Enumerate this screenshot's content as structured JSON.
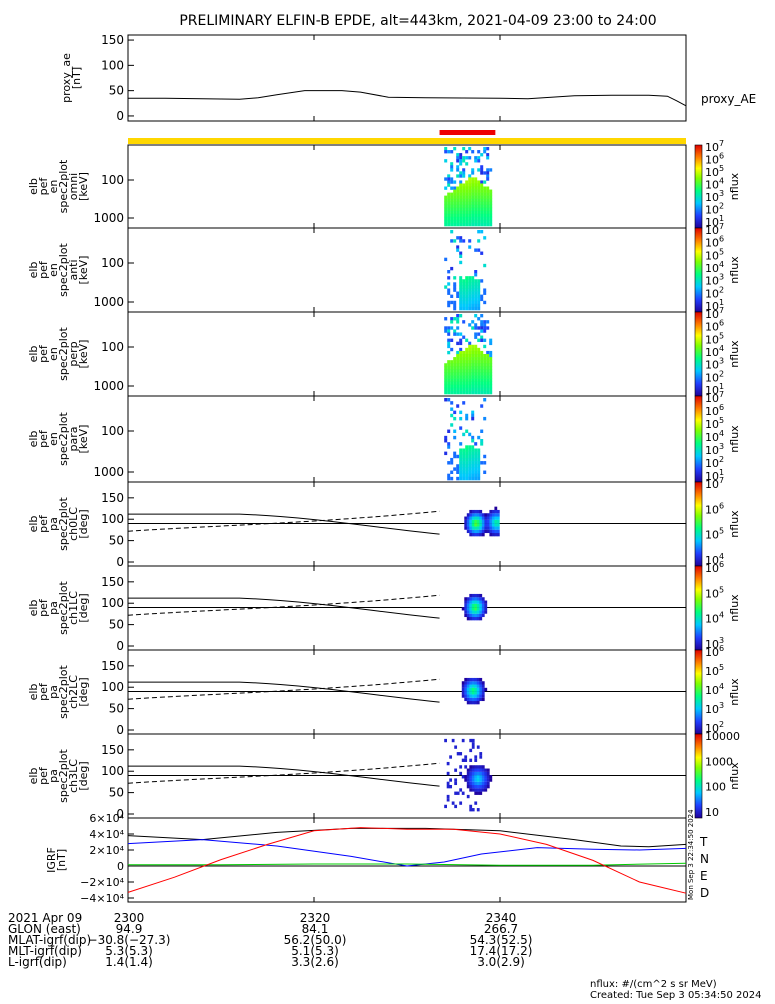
{
  "title": "PRELIMINARY ELFIN-B EPDE, alt=443km, 2021-04-09 23:00 to 24:00",
  "chart_data": [
    {
      "panel": "proxy_ae",
      "type": "line",
      "ylabel": [
        "proxy_ae",
        "[nT]"
      ],
      "legend": "proxy_AE",
      "ylim": [
        0,
        160
      ],
      "yticks": [
        "0",
        "50",
        "100",
        "150"
      ],
      "ytick_vals": [
        0,
        50,
        100,
        150
      ],
      "x_minutes": [
        0,
        4,
        8,
        12,
        14,
        16,
        19,
        23,
        25,
        28,
        32,
        40,
        43,
        48,
        52,
        56,
        58,
        59,
        60
      ],
      "values": [
        35,
        35,
        34,
        33,
        36,
        42,
        50,
        50,
        47,
        37,
        36,
        35,
        34,
        40,
        41,
        41,
        39,
        30,
        20
      ]
    },
    {
      "panel": "science_zone_bar",
      "type": "bar",
      "yellow_span_minutes": [
        0,
        60
      ],
      "red_span_minutes": [
        33.5,
        39.5
      ]
    },
    {
      "panel": "omni",
      "type": "heatmap",
      "ylabel": [
        "elb",
        "pef",
        "en",
        "spec2plot",
        "omni",
        "[keV]"
      ],
      "yscale": "log",
      "yticks": [
        "100",
        "1000"
      ],
      "zlabel": "nflux",
      "zlim": [
        10,
        10000000
      ],
      "ztick_pows": [
        1,
        2,
        3,
        4,
        5,
        6,
        7
      ],
      "ztick_base": "10",
      "active_minutes": [
        34.0,
        39.0
      ]
    },
    {
      "panel": "anti",
      "type": "heatmap",
      "ylabel": [
        "elb",
        "pef",
        "en",
        "spec2plot",
        "anti",
        "[keV]"
      ],
      "yscale": "log",
      "yticks": [
        "100",
        "1000"
      ],
      "zlabel": "nflux",
      "zlim": [
        10,
        10000000
      ],
      "ztick_pows": [
        1,
        2,
        3,
        4,
        5,
        6,
        7
      ],
      "ztick_base": "10",
      "active_minutes": [
        34.0,
        38.5
      ]
    },
    {
      "panel": "perp",
      "type": "heatmap",
      "ylabel": [
        "elb",
        "pef",
        "en",
        "spec2plot",
        "perp",
        "[keV]"
      ],
      "yscale": "log",
      "yticks": [
        "100",
        "1000"
      ],
      "zlabel": "nflux",
      "zlim": [
        10,
        10000000
      ],
      "ztick_pows": [
        1,
        2,
        3,
        4,
        5,
        6,
        7
      ],
      "ztick_base": "10",
      "active_minutes": [
        34.0,
        39.0
      ]
    },
    {
      "panel": "para",
      "type": "heatmap",
      "ylabel": [
        "elb",
        "pef",
        "en",
        "spec2plot",
        "para",
        "[keV]"
      ],
      "yscale": "log",
      "yticks": [
        "100",
        "1000"
      ],
      "zlabel": "nflux",
      "zlim": [
        10,
        10000000
      ],
      "ztick_pows": [
        1,
        2,
        3,
        4,
        5,
        6,
        7
      ],
      "ztick_base": "10",
      "active_minutes": [
        34.0,
        38.5
      ]
    },
    {
      "panel": "ch0LC",
      "type": "heatmap",
      "ylabel": [
        "elb",
        "pef",
        "pa",
        "spec2plot",
        "ch0LC",
        "[deg]"
      ],
      "yticks": [
        "0",
        "50",
        "100",
        "150"
      ],
      "ylim": [
        0,
        180
      ],
      "zlabel": "nflux",
      "zlim": [
        1000,
        10000000
      ],
      "ztick_pows": [
        4,
        5,
        6,
        7
      ],
      "ztick_base": "10"
    },
    {
      "panel": "ch1LC",
      "type": "heatmap",
      "ylabel": [
        "elb",
        "pef",
        "pa",
        "spec2plot",
        "ch1LC",
        "[deg]"
      ],
      "yticks": [
        "0",
        "50",
        "100",
        "150"
      ],
      "ylim": [
        0,
        180
      ],
      "zlabel": "nflux",
      "zlim": [
        100,
        10000000
      ],
      "ztick_pows": [
        3,
        4,
        5,
        6
      ],
      "ztick_base": "10"
    },
    {
      "panel": "ch2LC",
      "type": "heatmap",
      "ylabel": [
        "elb",
        "pef",
        "pa",
        "spec2plot",
        "ch2LC",
        "[deg]"
      ],
      "yticks": [
        "0",
        "50",
        "100",
        "150"
      ],
      "ylim": [
        0,
        180
      ],
      "zlabel": "nflux",
      "zlim": [
        100,
        1000000
      ],
      "ztick_pows": [
        2,
        3,
        4,
        5,
        6
      ],
      "ztick_base": "10"
    },
    {
      "panel": "ch3LC",
      "type": "heatmap",
      "ylabel": [
        "elb",
        "pef",
        "pa",
        "spec2plot",
        "ch3LC",
        "[deg]"
      ],
      "yticks": [
        "0",
        "50",
        "100",
        "150"
      ],
      "ylim": [
        0,
        180
      ],
      "zlabel": "nflux",
      "zlim": [
        10,
        10000
      ],
      "zticks": [
        "10",
        "100",
        "1000",
        "10000"
      ]
    },
    {
      "panel": "igrf",
      "type": "line",
      "ylabel": [
        "IGRF",
        "[nT]"
      ],
      "yticks": [
        "6×10⁴",
        "4×10⁴",
        "2×10⁴",
        "0",
        "−2×10⁴",
        "−4×10⁴"
      ],
      "ytick_vals": [
        60000,
        40000,
        20000,
        0,
        -20000,
        -40000
      ],
      "ylim": [
        -45000,
        60000
      ],
      "series": [
        {
          "name": "T",
          "color": "#000000",
          "x": [
            0,
            8,
            16,
            24,
            32,
            40,
            48,
            53,
            56,
            60
          ],
          "values": [
            38000,
            33000,
            42000,
            47000,
            47000,
            44000,
            33000,
            25000,
            24000,
            27000
          ]
        },
        {
          "name": "N",
          "color": "#0000ff",
          "x": [
            0,
            8,
            16,
            24,
            30,
            34,
            38,
            44,
            50,
            55,
            60
          ],
          "values": [
            28000,
            33000,
            25000,
            12000,
            0,
            5000,
            15000,
            23000,
            21000,
            20000,
            22000
          ]
        },
        {
          "name": "E",
          "color": "#00cc00",
          "x": [
            0,
            10,
            20,
            30,
            40,
            50,
            60
          ],
          "values": [
            1500,
            1500,
            2500,
            2500,
            1000,
            1000,
            3500
          ]
        },
        {
          "name": "D",
          "color": "#ff0000",
          "x": [
            0,
            5,
            10,
            15,
            20,
            25,
            30,
            35,
            40,
            45,
            50,
            55,
            60
          ],
          "values": [
            -33000,
            -14000,
            8000,
            27000,
            44000,
            48000,
            46000,
            46000,
            40000,
            27000,
            7000,
            -20000,
            -34000
          ]
        }
      ]
    }
  ],
  "xticks": [
    "2300",
    "2320",
    "2340"
  ],
  "xtick_minutes": [
    0,
    20,
    40
  ],
  "ephemeris": {
    "labels": [
      "2021 Apr 09",
      "GLON (east)",
      "MLAT-igrf(dip)",
      "MLT-igrf(dip)",
      "L-igrf(dip)"
    ],
    "col0": [
      "2300",
      "94.9",
      "−30.8(−27.3)",
      "5.3(5.3)",
      "1.4(1.4)"
    ],
    "col1": [
      "2320",
      "84.1",
      "56.2(50.0)",
      "5.1(5.3)",
      "3.3(2.6)"
    ],
    "col2": [
      "2340",
      "266.7",
      "54.3(52.5)",
      "17.4(17.2)",
      "3.0(2.9)"
    ]
  },
  "igrf_side_stamp": "Mon Sep  3 22:34:50 2024",
  "footer": {
    "units": "nflux: #/(cm^2 s sr MeV)",
    "created": "Created: Tue Sep  3 05:34:50 2024"
  }
}
